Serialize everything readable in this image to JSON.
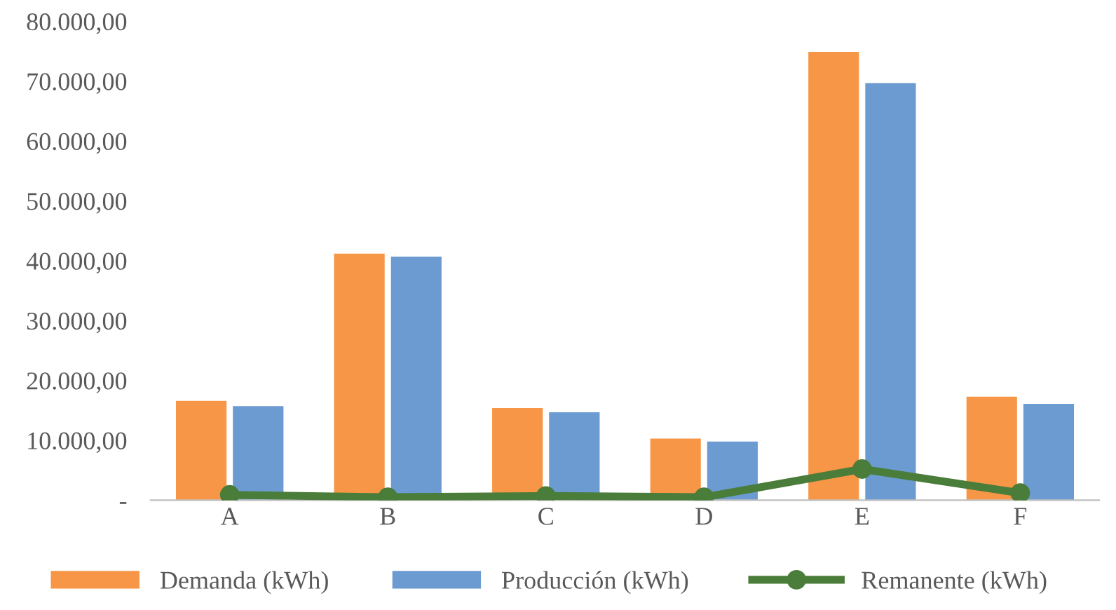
{
  "chart_data": {
    "type": "bar",
    "categories": [
      "A",
      "B",
      "C",
      "D",
      "E",
      "F"
    ],
    "series": [
      {
        "name": "Demanda (kWh)",
        "color": "#f79646",
        "values": [
          16600,
          41200,
          15400,
          10300,
          74900,
          17300
        ]
      },
      {
        "name": "Producción (kWh)",
        "color": "#6b9bd0",
        "values": [
          15700,
          40700,
          14700,
          9800,
          69700,
          16100
        ]
      },
      {
        "name": "Remanente (kWh)",
        "type": "line",
        "color": "#4a7c3a",
        "marker": "circle",
        "values": [
          900,
          500,
          700,
          500,
          5200,
          1200
        ]
      }
    ],
    "ylim": [
      0,
      80000
    ],
    "yticks": [
      {
        "value": 0,
        "label": "-"
      },
      {
        "value": 10000,
        "label": "10.000,00"
      },
      {
        "value": 20000,
        "label": "20.000,00"
      },
      {
        "value": 30000,
        "label": "30.000,00"
      },
      {
        "value": 40000,
        "label": "40.000,00"
      },
      {
        "value": 50000,
        "label": "50.000,00"
      },
      {
        "value": 60000,
        "label": "60.000,00"
      },
      {
        "value": 70000,
        "label": "70.000,00"
      },
      {
        "value": 80000,
        "label": "80.000,00"
      }
    ],
    "grid": false,
    "legend": "bottom"
  }
}
